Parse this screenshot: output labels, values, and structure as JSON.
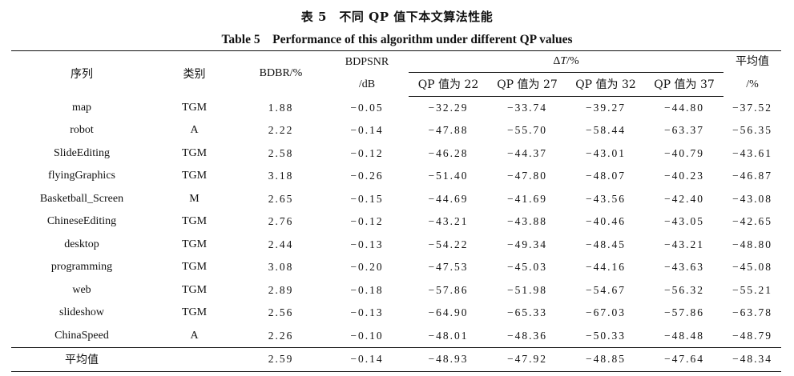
{
  "caption": {
    "cn": "表 5　不同 QP 值下本文算法性能",
    "en": "Table 5　Performance of this algorithm under different QP values"
  },
  "headers": {
    "sequence": "序列",
    "category": "类别",
    "bdbr": "BDBR/%",
    "bdpsnr_line1": "BDPSNR",
    "bdpsnr_line2": "/dB",
    "delta_t_symbol": "Δ",
    "delta_t_var": "T",
    "delta_t_unit": "/%",
    "qp": [
      "QP 值为 22",
      "QP 值为 27",
      "QP 值为 32",
      "QP 值为 37"
    ],
    "avg_line1": "平均值",
    "avg_line2": "/%"
  },
  "rows": [
    {
      "seq": "map",
      "cat": "TGM",
      "bdbr": "1.88",
      "bdpsnr": "−0.05",
      "qp22": "−32.29",
      "qp27": "−33.74",
      "qp32": "−39.27",
      "qp37": "−44.80",
      "avg": "−37.52"
    },
    {
      "seq": "robot",
      "cat": "A",
      "bdbr": "2.22",
      "bdpsnr": "−0.14",
      "qp22": "−47.88",
      "qp27": "−55.70",
      "qp32": "−58.44",
      "qp37": "−63.37",
      "avg": "−56.35"
    },
    {
      "seq": "SlideEditing",
      "cat": "TGM",
      "bdbr": "2.58",
      "bdpsnr": "−0.12",
      "qp22": "−46.28",
      "qp27": "−44.37",
      "qp32": "−43.01",
      "qp37": "−40.79",
      "avg": "−43.61"
    },
    {
      "seq": "flyingGraphics",
      "cat": "TGM",
      "bdbr": "3.18",
      "bdpsnr": "−0.26",
      "qp22": "−51.40",
      "qp27": "−47.80",
      "qp32": "−48.07",
      "qp37": "−40.23",
      "avg": "−46.87"
    },
    {
      "seq": "Basketball_Screen",
      "cat": "M",
      "bdbr": "2.65",
      "bdpsnr": "−0.15",
      "qp22": "−44.69",
      "qp27": "−41.69",
      "qp32": "−43.56",
      "qp37": "−42.40",
      "avg": "−43.08"
    },
    {
      "seq": "ChineseEditing",
      "cat": "TGM",
      "bdbr": "2.76",
      "bdpsnr": "−0.12",
      "qp22": "−43.21",
      "qp27": "−43.88",
      "qp32": "−40.46",
      "qp37": "−43.05",
      "avg": "−42.65"
    },
    {
      "seq": "desktop",
      "cat": "TGM",
      "bdbr": "2.44",
      "bdpsnr": "−0.13",
      "qp22": "−54.22",
      "qp27": "−49.34",
      "qp32": "−48.45",
      "qp37": "−43.21",
      "avg": "−48.80"
    },
    {
      "seq": "programming",
      "cat": "TGM",
      "bdbr": "3.08",
      "bdpsnr": "−0.20",
      "qp22": "−47.53",
      "qp27": "−45.03",
      "qp32": "−44.16",
      "qp37": "−43.63",
      "avg": "−45.08"
    },
    {
      "seq": "web",
      "cat": "TGM",
      "bdbr": "2.89",
      "bdpsnr": "−0.18",
      "qp22": "−57.86",
      "qp27": "−51.98",
      "qp32": "−54.67",
      "qp37": "−56.32",
      "avg": "−55.21"
    },
    {
      "seq": "slideshow",
      "cat": "TGM",
      "bdbr": "2.56",
      "bdpsnr": "−0.13",
      "qp22": "−64.90",
      "qp27": "−65.33",
      "qp32": "−67.03",
      "qp37": "−57.86",
      "avg": "−63.78"
    },
    {
      "seq": "ChinaSpeed",
      "cat": "A",
      "bdbr": "2.26",
      "bdpsnr": "−0.10",
      "qp22": "−48.01",
      "qp27": "−48.36",
      "qp32": "−50.33",
      "qp37": "−48.48",
      "avg": "−48.79"
    }
  ],
  "average": {
    "label": "平均值",
    "bdbr": "2.59",
    "bdpsnr": "−0.14",
    "qp22": "−48.93",
    "qp27": "−47.92",
    "qp32": "−48.85",
    "qp37": "−47.64",
    "avg": "−48.34"
  }
}
